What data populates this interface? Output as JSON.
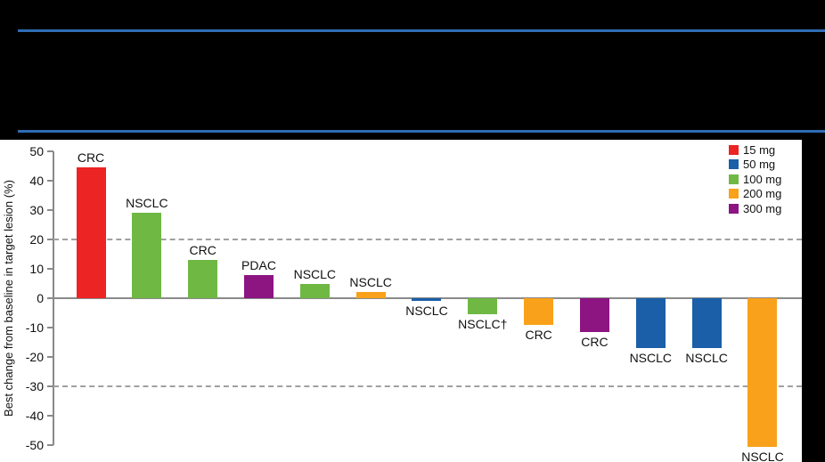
{
  "header": {
    "rule_color": "#2E6DB4"
  },
  "chart_data": {
    "type": "bar",
    "subtype": "waterfall",
    "title": "",
    "xlabel": "",
    "ylabel": "Best change from baseline in target lesion (%)",
    "ylim": [
      -50,
      50
    ],
    "y_ticks": [
      50,
      40,
      30,
      20,
      10,
      0,
      -10,
      -20,
      -30,
      -40,
      -50
    ],
    "reference_lines": [
      20,
      -30
    ],
    "grid": "dashed reference lines at +20 and -30 only",
    "legend": {
      "position": "top-right",
      "entries": [
        {
          "label": "15 mg",
          "color": "#EC2424"
        },
        {
          "label": "50 mg",
          "color": "#1A5FA8"
        },
        {
          "label": "100 mg",
          "color": "#6FB844"
        },
        {
          "label": "200 mg",
          "color": "#F9A11B"
        },
        {
          "label": "300 mg",
          "color": "#8C1582"
        }
      ]
    },
    "bars": [
      {
        "label": "CRC",
        "dose": "15 mg",
        "value": 44.5
      },
      {
        "label": "NSCLC",
        "dose": "100 mg",
        "value": 29
      },
      {
        "label": "CRC",
        "dose": "100 mg",
        "value": 13
      },
      {
        "label": "PDAC",
        "dose": "300 mg",
        "value": 8
      },
      {
        "label": "NSCLC",
        "dose": "100 mg",
        "value": 5
      },
      {
        "label": "NSCLC",
        "dose": "200 mg",
        "value": 2
      },
      {
        "label": "NSCLC",
        "dose": "50 mg",
        "value": -1
      },
      {
        "label": "NSCLC†",
        "dose": "100 mg",
        "value": -5.5
      },
      {
        "label": "CRC",
        "dose": "200 mg",
        "value": -9
      },
      {
        "label": "CRC",
        "dose": "300 mg",
        "value": -11.5
      },
      {
        "label": "NSCLC",
        "dose": "50 mg",
        "value": -17
      },
      {
        "label": "NSCLC",
        "dose": "50 mg",
        "value": -17
      },
      {
        "label": "NSCLC",
        "dose": "200 mg",
        "value": -50.5
      }
    ]
  }
}
